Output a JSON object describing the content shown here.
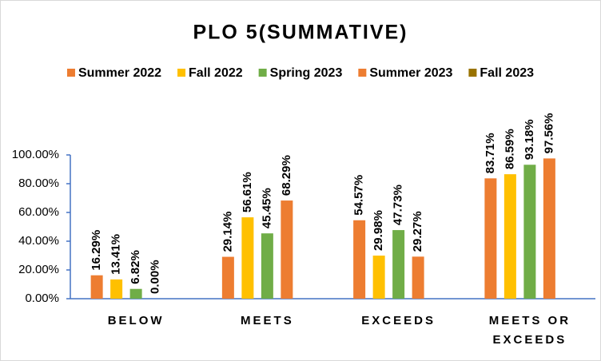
{
  "chart_data": {
    "type": "bar",
    "title": "PLO 5(SUMMATIVE)",
    "categories": [
      "BELOW",
      "MEETS",
      "EXCEEDS",
      "MEETS OR EXCEEDS"
    ],
    "series": [
      {
        "name": "Summer 2022",
        "color": "#ED7D31",
        "values": [
          16.29,
          29.14,
          54.57,
          83.71
        ],
        "value_labels": [
          "16.29%",
          "29.14%",
          "54.57%",
          "83.71%"
        ]
      },
      {
        "name": "Fall 2022",
        "color": "#FFC000",
        "values": [
          13.41,
          56.61,
          29.98,
          86.59
        ],
        "value_labels": [
          "13.41%",
          "56.61%",
          "29.98%",
          "86.59%"
        ]
      },
      {
        "name": "Spring 2023",
        "color": "#70AD47",
        "values": [
          6.82,
          45.45,
          47.73,
          93.18
        ],
        "value_labels": [
          "6.82%",
          "45.45%",
          "47.73%",
          "93.18%"
        ]
      },
      {
        "name": "Summer 2023",
        "color": "#ED7D31",
        "values": [
          0.0,
          68.29,
          29.27,
          97.56
        ],
        "value_labels": [
          "0.00%",
          "68.29%",
          "29.27%",
          "97.56%"
        ]
      },
      {
        "name": "Fall 2023",
        "color": "#997300",
        "values": [
          null,
          null,
          null,
          null
        ]
      }
    ],
    "ylim": [
      0,
      100
    ],
    "yticks": [
      {
        "value": 0,
        "label": "0.00%"
      },
      {
        "value": 20,
        "label": "20.00%"
      },
      {
        "value": 40,
        "label": "40.00%"
      },
      {
        "value": 60,
        "label": "60.00%"
      },
      {
        "value": 80,
        "label": "80.00%"
      },
      {
        "value": 100,
        "label": "100.00%"
      }
    ],
    "grid": false,
    "legend": "top"
  }
}
